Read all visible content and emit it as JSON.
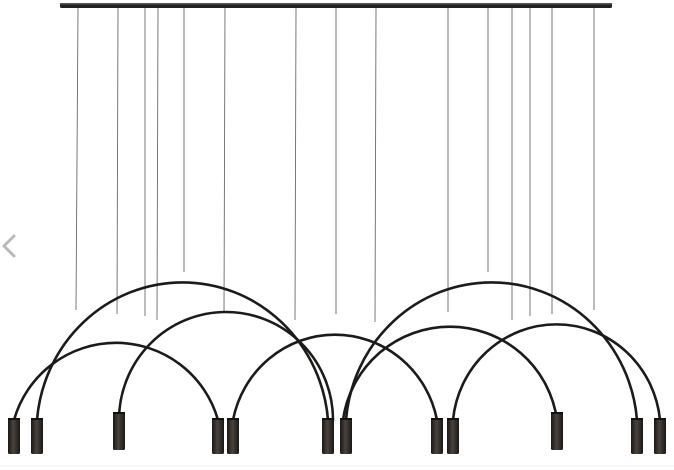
{
  "image": {
    "subject": "pendant-chandelier-product-photo",
    "background": "#ffffff",
    "metal_color": "#1c1b1a",
    "wire_color": "#6a6a6a",
    "shade_color": "#2e2a26"
  },
  "gallery": {
    "prev_arrow_icon": "chevron-left-icon",
    "arrow_color": "#b9b9b9"
  }
}
